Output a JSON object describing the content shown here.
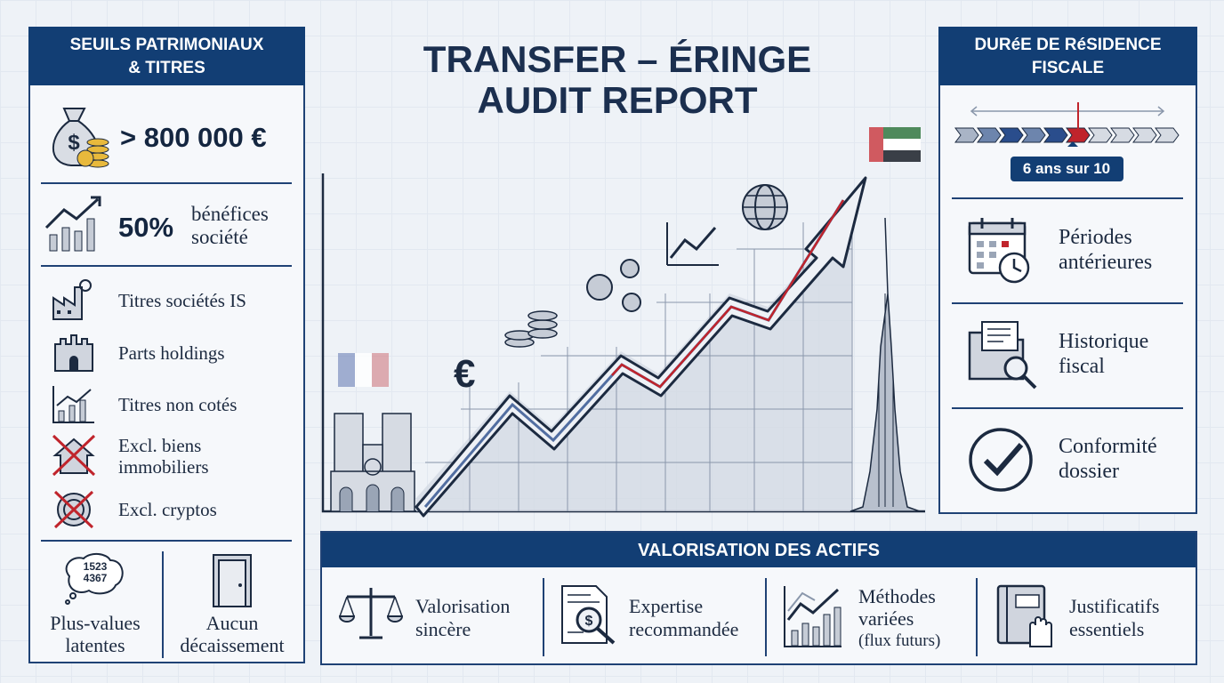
{
  "header": {
    "title_lines": [
      "TRANSFER – ÉRINGE",
      "AUDIT REPORT"
    ]
  },
  "left_panel": {
    "title_lines": [
      "SEUILS PATRIMONIAUX",
      "& TITRES"
    ],
    "threshold": "> 800 000 €",
    "profit_share": {
      "value": "50%",
      "label_lines": [
        "bénéfices",
        "société"
      ]
    },
    "items": [
      {
        "lines": [
          "Titres sociétés IS"
        ]
      },
      {
        "lines": [
          "Parts holdings"
        ]
      },
      {
        "lines": [
          "Titres non cotés"
        ]
      },
      {
        "lines": [
          "Excl. biens",
          "immobiliers"
        ]
      },
      {
        "lines": [
          "Excl. cryptos"
        ]
      }
    ],
    "bubble_lines": [
      "1523",
      "4367"
    ],
    "footer": [
      {
        "lines": [
          "Plus-values",
          "latentes"
        ]
      },
      {
        "lines": [
          "Aucun",
          "décaissement"
        ]
      }
    ]
  },
  "right_panel": {
    "title_lines": [
      "DURéE DE RéSIDENCE",
      "FISCALE"
    ],
    "timeline_label": "6 ans sur 10",
    "items": [
      {
        "lines": [
          "Périodes",
          "antérieures"
        ]
      },
      {
        "lines": [
          "Historique",
          "fiscal"
        ]
      },
      {
        "lines": [
          "Conformité",
          "dossier"
        ]
      }
    ]
  },
  "valuation": {
    "title": "VALORISATION DES ACTIFS",
    "items": [
      {
        "lines": [
          "Valorisation",
          "sincère"
        ]
      },
      {
        "lines": [
          "Expertise",
          "recommandée"
        ]
      },
      {
        "lines": [
          "Méthodes",
          "variées",
          "(flux futurs)"
        ]
      },
      {
        "lines": [
          "Justificatifs",
          "essentiels"
        ]
      }
    ]
  }
}
